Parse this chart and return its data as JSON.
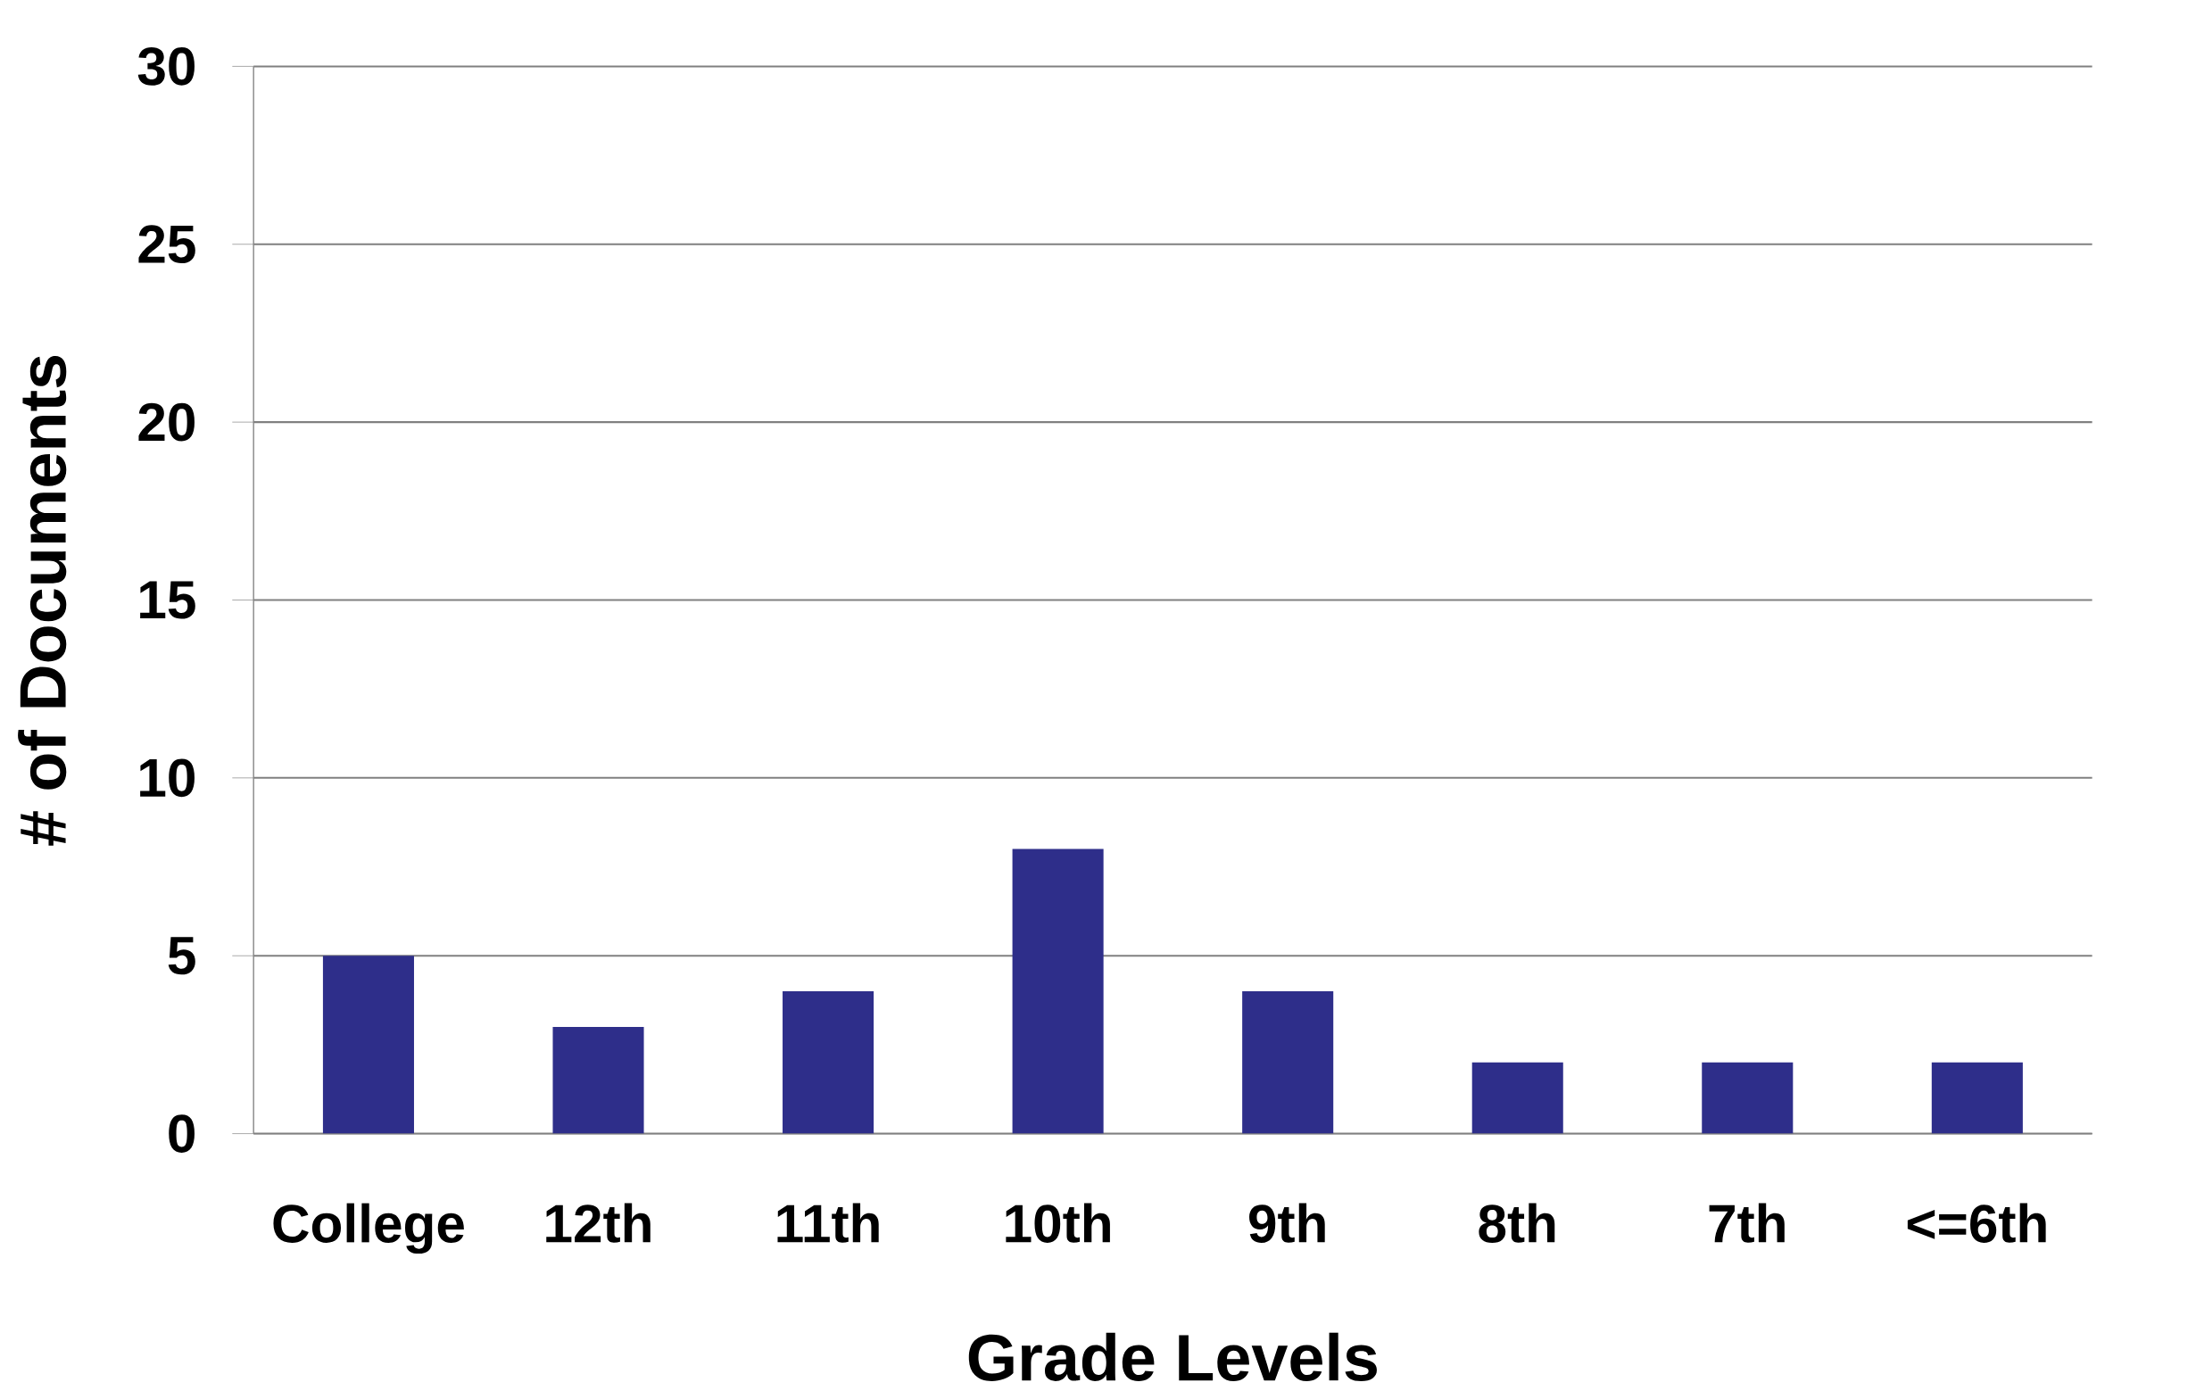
{
  "chart_data": {
    "type": "bar",
    "xlabel": "Grade Levels",
    "ylabel": "# of Documents",
    "categories": [
      "College",
      "12th",
      "11th",
      "10th",
      "9th",
      "8th",
      "7th",
      "<=6th"
    ],
    "values": [
      5,
      3,
      4,
      8,
      4,
      2,
      2,
      2
    ],
    "color": "#2e2e8a",
    "ylim": [
      0,
      30
    ],
    "yticks": [
      0,
      5,
      10,
      15,
      20,
      25,
      30
    ],
    "grid": "y"
  }
}
